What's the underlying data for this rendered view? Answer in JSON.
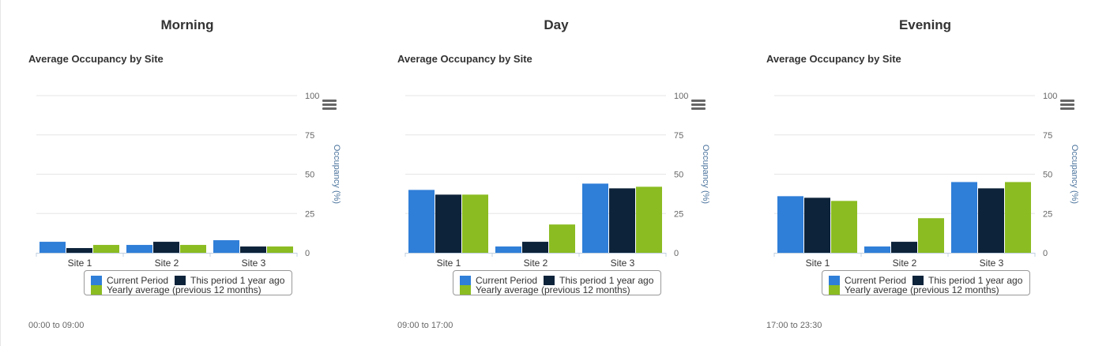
{
  "colors": {
    "current": "#2f7ed8",
    "last_year": "#0d233a",
    "yearly_avg": "#8bbc21"
  },
  "legend": {
    "current": "Current Period",
    "last_year": "This period 1 year ago",
    "yearly_avg": "Yearly average (previous 12 months)"
  },
  "icons": {
    "menu": "hamburger-menu-icon"
  },
  "chart_data": [
    {
      "type": "bar",
      "panel_title": "Morning",
      "title": "Average Occupancy by Site",
      "time_range": "00:00 to 09:00",
      "categories": [
        "Site 1",
        "Site 2",
        "Site 3"
      ],
      "ylabel": "Occupancy (%)",
      "ylim": [
        0,
        100
      ],
      "yticks": [
        "0",
        "25",
        "50",
        "75",
        "100"
      ],
      "grid": true,
      "legend_position": "bottom",
      "series": [
        {
          "name": "Current Period",
          "values": [
            7,
            5,
            8
          ]
        },
        {
          "name": "This period 1 year ago",
          "values": [
            3,
            7,
            4
          ]
        },
        {
          "name": "Yearly average (previous 12 months)",
          "values": [
            5,
            5,
            4
          ]
        }
      ]
    },
    {
      "type": "bar",
      "panel_title": "Day",
      "title": "Average Occupancy by Site",
      "time_range": "09:00 to 17:00",
      "categories": [
        "Site 1",
        "Site 2",
        "Site 3"
      ],
      "ylabel": "Occupancy (%)",
      "ylim": [
        0,
        100
      ],
      "yticks": [
        "0",
        "25",
        "50",
        "75",
        "100"
      ],
      "grid": true,
      "legend_position": "bottom",
      "series": [
        {
          "name": "Current Period",
          "values": [
            40,
            4,
            44
          ]
        },
        {
          "name": "This period 1 year ago",
          "values": [
            37,
            7,
            41
          ]
        },
        {
          "name": "Yearly average (previous 12 months)",
          "values": [
            37,
            18,
            42
          ]
        }
      ]
    },
    {
      "type": "bar",
      "panel_title": "Evening",
      "title": "Average Occupancy by Site",
      "time_range": "17:00 to 23:30",
      "categories": [
        "Site 1",
        "Site 2",
        "Site 3"
      ],
      "ylabel": "Occupancy (%)",
      "ylim": [
        0,
        100
      ],
      "yticks": [
        "0",
        "25",
        "50",
        "75",
        "100"
      ],
      "grid": true,
      "legend_position": "bottom",
      "series": [
        {
          "name": "Current Period",
          "values": [
            36,
            4,
            45
          ]
        },
        {
          "name": "This period 1 year ago",
          "values": [
            35,
            7,
            41
          ]
        },
        {
          "name": "Yearly average (previous 12 months)",
          "values": [
            33,
            22,
            45
          ]
        }
      ]
    }
  ]
}
